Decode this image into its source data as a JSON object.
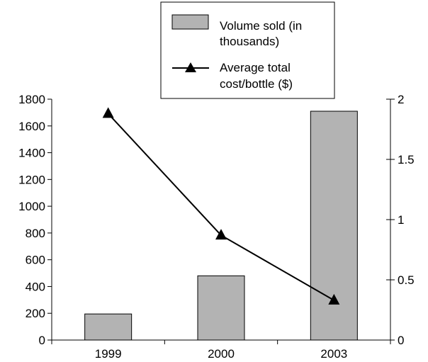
{
  "chart_data": {
    "type": "bar",
    "categories": [
      "1999",
      "2000",
      "2003"
    ],
    "series": [
      {
        "name": "Volume sold (in thousands)",
        "type": "bar",
        "axis": "left",
        "values": [
          195,
          480,
          1710
        ],
        "color": "#b3b3b3"
      },
      {
        "name": "Average total cost/bottle ($)",
        "type": "line",
        "axis": "right",
        "marker": "triangle",
        "values": [
          1.88,
          0.87,
          0.33
        ],
        "color": "#000000"
      }
    ],
    "y_left": {
      "min": 0,
      "max": 1800,
      "ticks": [
        "0",
        "200",
        "400",
        "600",
        "800",
        "1000",
        "1200",
        "1400",
        "1600",
        "1800"
      ]
    },
    "y_right": {
      "min": 0,
      "max": 2,
      "ticks": [
        "0",
        "0.5",
        "1",
        "1.5",
        "2"
      ]
    },
    "legend": {
      "position": "top",
      "entries": [
        {
          "lines": [
            "Volume sold (in",
            "thousands)"
          ]
        },
        {
          "lines": [
            "Average total",
            "cost/bottle ($)"
          ]
        }
      ]
    },
    "grid": false
  }
}
